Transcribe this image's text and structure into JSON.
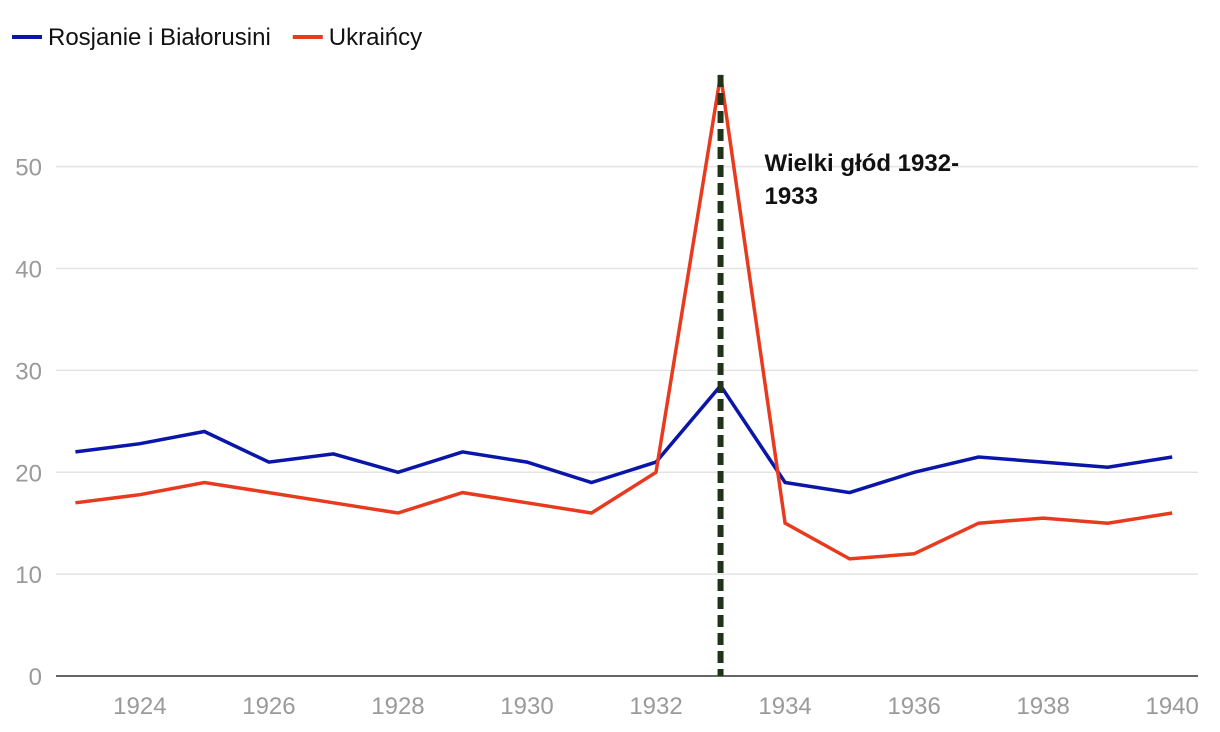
{
  "chart_data": {
    "type": "line",
    "title": "",
    "xlabel": "",
    "ylabel": "",
    "x": [
      1923,
      1924,
      1925,
      1926,
      1927,
      1928,
      1929,
      1930,
      1931,
      1932,
      1933,
      1934,
      1935,
      1936,
      1937,
      1938,
      1939,
      1940
    ],
    "xlim": [
      1922.7,
      1940.4
    ],
    "ylim": [
      0,
      59
    ],
    "x_ticks": [
      "1924",
      "1926",
      "1928",
      "1930",
      "1932",
      "1934",
      "1936",
      "1938",
      "1940"
    ],
    "y_ticks": [
      "0",
      "10",
      "20",
      "30",
      "40",
      "50"
    ],
    "grid": "horizontal",
    "legend_position": "top-left",
    "series": [
      {
        "name": "Rosjanie i Białorusini",
        "color": "#0a16a8",
        "values": [
          22,
          22.8,
          24,
          21,
          21.8,
          20,
          22,
          21,
          19,
          21,
          28.5,
          19,
          18,
          20,
          21.5,
          21,
          20.5,
          21.5
        ]
      },
      {
        "name": "Ukraińcy",
        "color": "#e83a1f",
        "values": [
          17,
          17.8,
          19,
          18,
          17,
          16,
          18,
          17,
          16,
          20,
          59,
          15,
          11.5,
          12,
          15,
          15.5,
          15,
          16
        ]
      }
    ],
    "annotation": {
      "x": 1933,
      "color": "#1f3318",
      "lines": [
        "Wielki głód 1932-",
        "1933"
      ]
    }
  }
}
